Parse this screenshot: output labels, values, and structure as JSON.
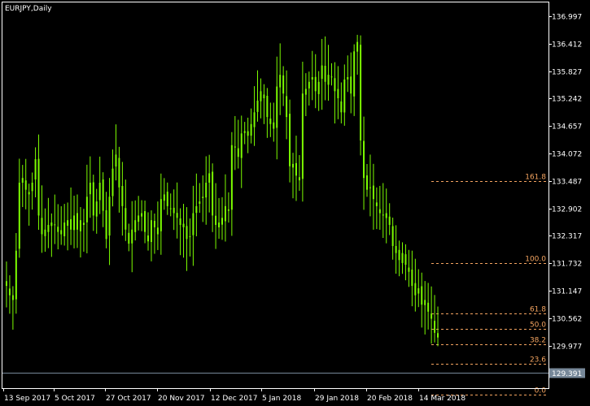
{
  "window": {
    "title": "EURJPY,Daily"
  },
  "colors": {
    "background": "#000000",
    "frame": "#ffffff",
    "candles": "#7cfc00",
    "fibonacci": "#f4a460",
    "current_price_line": "#778899",
    "current_price_label_bg": "#778899",
    "text": "#ffffff"
  },
  "chart_data": {
    "type": "candlestick",
    "symbol": "EURJPY",
    "timeframe": "Daily",
    "ylim": [
      129.07,
      137.31
    ],
    "y_ticks": [
      "136.997",
      "136.412",
      "135.827",
      "135.242",
      "134.657",
      "134.072",
      "133.487",
      "132.902",
      "132.317",
      "131.732",
      "131.147",
      "130.562",
      "129.977"
    ],
    "x_ticks": [
      "13 Sep 2017",
      "5 Oct 2017",
      "27 Oct 2017",
      "20 Nov 2017",
      "12 Dec 2017",
      "5 Jan 2018",
      "29 Jan 2018",
      "20 Feb 2018",
      "14 Mar 2018"
    ],
    "bar_count": 135,
    "current_price": "129.391",
    "close_series": [
      131.25,
      131.05,
      130.95,
      132.0,
      133.45,
      133.55,
      133.3,
      133.2,
      133.45,
      133.95,
      132.75,
      132.35,
      132.45,
      132.55,
      132.6,
      132.55,
      132.4,
      132.35,
      132.6,
      132.65,
      132.45,
      132.75,
      132.45,
      132.65,
      132.55,
      133.15,
      133.45,
      132.75,
      133.05,
      133.45,
      132.85,
      132.25,
      133.15,
      133.75,
      134.05,
      133.35,
      132.95,
      132.45,
      132.15,
      132.45,
      132.65,
      132.75,
      132.8,
      132.4,
      132.2,
      132.65,
      132.5,
      132.35,
      133.1,
      133.2,
      132.95,
      132.9,
      132.8,
      132.7,
      132.55,
      132.5,
      132.25,
      132.3,
      132.8,
      132.95,
      133.05,
      133.15,
      133.45,
      133.65,
      132.75,
      132.55,
      132.6,
      132.7,
      132.95,
      132.85,
      134.25,
      134.2,
      134.0,
      134.5,
      134.55,
      134.45,
      134.7,
      134.95,
      135.2,
      135.4,
      135.25,
      134.85,
      134.7,
      134.6,
      135.5,
      135.75,
      135.35,
      134.85,
      133.8,
      133.85,
      133.6,
      133.5,
      135.35,
      135.45,
      135.6,
      135.7,
      135.4,
      135.6,
      135.95,
      135.6,
      135.75,
      135.7,
      135.4,
      135.25,
      134.95,
      135.65,
      135.7,
      135.35,
      136.25,
      136.45,
      134.35,
      133.55,
      133.3,
      133.35,
      133.1,
      132.95,
      132.8,
      132.75,
      132.8,
      132.55,
      132.1,
      131.95,
      131.8,
      131.95,
      131.7,
      131.55,
      131.25,
      131.05,
      131.2,
      130.85,
      130.95,
      130.7,
      130.55,
      130.25,
      130.15
    ],
    "fibonacci_levels": [
      {
        "label": "161.8",
        "value": 133.487
      },
      {
        "label": "100.0",
        "value": 131.732
      },
      {
        "label": "61.8",
        "value": 130.662
      },
      {
        "label": "50.0",
        "value": 130.333
      },
      {
        "label": "38.2",
        "value": 130.004
      },
      {
        "label": "23.6",
        "value": 129.593
      },
      {
        "label": "0.0",
        "value": 128.93
      }
    ]
  }
}
